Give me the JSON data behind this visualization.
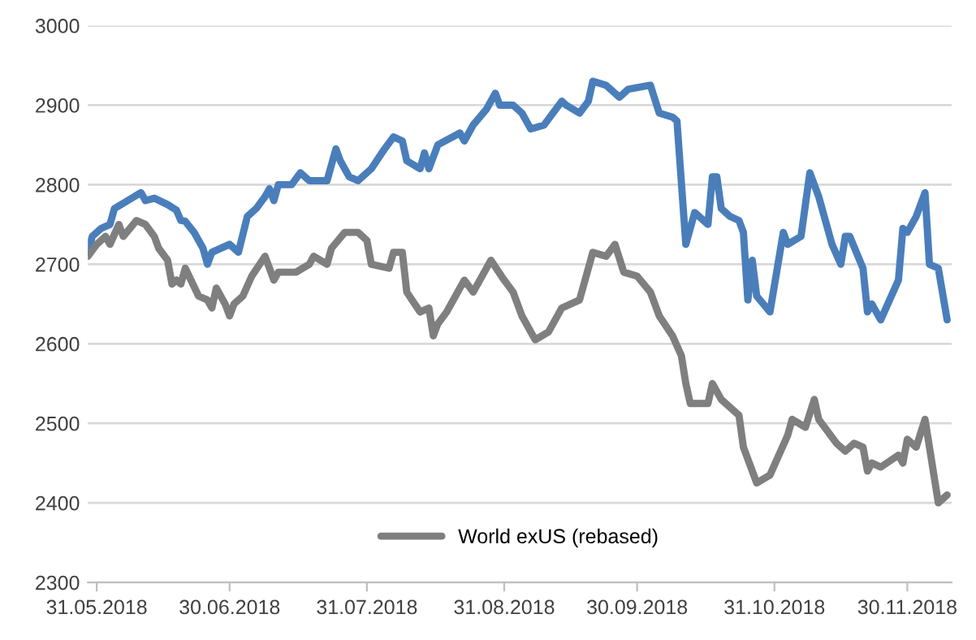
{
  "chart_data": {
    "type": "line",
    "series": [
      {
        "color": "#4a7ebb",
        "x": [
          "2018-05-29",
          "2018-05-30",
          "2018-06-01",
          "2018-06-03",
          "2018-06-04",
          "2018-06-07",
          "2018-06-10",
          "2018-06-11",
          "2018-06-13",
          "2018-06-16",
          "2018-06-18",
          "2018-06-19",
          "2018-06-20",
          "2018-06-22",
          "2018-06-24",
          "2018-06-25",
          "2018-06-26",
          "2018-06-30",
          "2018-07-02",
          "2018-07-04",
          "2018-07-06",
          "2018-07-08",
          "2018-07-09",
          "2018-07-10",
          "2018-07-11",
          "2018-07-14",
          "2018-07-16",
          "2018-07-18",
          "2018-07-22",
          "2018-07-24",
          "2018-07-25",
          "2018-07-27",
          "2018-07-29",
          "2018-08-01",
          "2018-08-04",
          "2018-08-06",
          "2018-08-08",
          "2018-08-09",
          "2018-08-12",
          "2018-08-13",
          "2018-08-14",
          "2018-08-16",
          "2018-08-21",
          "2018-08-22",
          "2018-08-24",
          "2018-08-27",
          "2018-08-29",
          "2018-08-30",
          "2018-09-02",
          "2018-09-04",
          "2018-09-06",
          "2018-09-09",
          "2018-09-13",
          "2018-09-14",
          "2018-09-17",
          "2018-09-19",
          "2018-09-20",
          "2018-09-23",
          "2018-09-26",
          "2018-09-28",
          "2018-10-03",
          "2018-10-05",
          "2018-10-08",
          "2018-10-09",
          "2018-10-11",
          "2018-10-13",
          "2018-10-16",
          "2018-10-17",
          "2018-10-18",
          "2018-10-19",
          "2018-10-21",
          "2018-10-23",
          "2018-10-24",
          "2018-10-25",
          "2018-10-26",
          "2018-10-27",
          "2018-10-30",
          "2018-11-02",
          "2018-11-03",
          "2018-11-06",
          "2018-11-08",
          "2018-11-10",
          "2018-11-13",
          "2018-11-15",
          "2018-11-16",
          "2018-11-17",
          "2018-11-20",
          "2018-11-21",
          "2018-11-22",
          "2018-11-24",
          "2018-11-28",
          "2018-11-29",
          "2018-11-30",
          "2018-12-02",
          "2018-12-04",
          "2018-12-05",
          "2018-12-07",
          "2018-12-09"
        ],
        "values": [
          2715,
          2735,
          2745,
          2750,
          2770,
          2780,
          2790,
          2780,
          2783,
          2775,
          2768,
          2755,
          2754,
          2740,
          2720,
          2700,
          2715,
          2725,
          2715,
          2760,
          2770,
          2785,
          2795,
          2780,
          2800,
          2800,
          2815,
          2805,
          2805,
          2845,
          2830,
          2810,
          2805,
          2820,
          2845,
          2860,
          2855,
          2830,
          2820,
          2840,
          2820,
          2850,
          2865,
          2855,
          2875,
          2895,
          2915,
          2900,
          2900,
          2890,
          2870,
          2875,
          2905,
          2900,
          2890,
          2905,
          2930,
          2925,
          2910,
          2920,
          2925,
          2890,
          2885,
          2880,
          2725,
          2765,
          2750,
          2810,
          2810,
          2770,
          2760,
          2755,
          2740,
          2655,
          2705,
          2660,
          2640,
          2740,
          2725,
          2735,
          2815,
          2785,
          2725,
          2700,
          2735,
          2735,
          2695,
          2640,
          2650,
          2630,
          2680,
          2745,
          2740,
          2760,
          2790,
          2700,
          2695,
          2630
        ]
      },
      {
        "name": "World exUS (rebased)",
        "color": "#7f7f7f",
        "x": [
          "2018-05-29",
          "2018-05-31",
          "2018-06-02",
          "2018-06-03",
          "2018-06-05",
          "2018-06-06",
          "2018-06-09",
          "2018-06-11",
          "2018-06-13",
          "2018-06-14",
          "2018-06-16",
          "2018-06-17",
          "2018-06-18",
          "2018-06-19",
          "2018-06-20",
          "2018-06-23",
          "2018-06-25",
          "2018-06-26",
          "2018-06-27",
          "2018-06-29",
          "2018-06-30",
          "2018-07-01",
          "2018-07-03",
          "2018-07-05",
          "2018-07-08",
          "2018-07-10",
          "2018-07-11",
          "2018-07-15",
          "2018-07-18",
          "2018-07-19",
          "2018-07-22",
          "2018-07-23",
          "2018-07-26",
          "2018-07-29",
          "2018-07-31",
          "2018-08-01",
          "2018-08-05",
          "2018-08-06",
          "2018-08-08",
          "2018-08-09",
          "2018-08-12",
          "2018-08-14",
          "2018-08-15",
          "2018-08-16",
          "2018-08-18",
          "2018-08-20",
          "2018-08-22",
          "2018-08-24",
          "2018-08-28",
          "2018-08-31",
          "2018-09-02",
          "2018-09-04",
          "2018-09-07",
          "2018-09-10",
          "2018-09-13",
          "2018-09-17",
          "2018-09-20",
          "2018-09-23",
          "2018-09-25",
          "2018-09-27",
          "2018-09-30",
          "2018-10-03",
          "2018-10-05",
          "2018-10-08",
          "2018-10-10",
          "2018-10-11",
          "2018-10-12",
          "2018-10-16",
          "2018-10-17",
          "2018-10-19",
          "2018-10-23",
          "2018-10-24",
          "2018-10-27",
          "2018-10-30",
          "2018-11-03",
          "2018-11-04",
          "2018-11-07",
          "2018-11-09",
          "2018-11-10",
          "2018-11-14",
          "2018-11-16",
          "2018-11-18",
          "2018-11-20",
          "2018-11-21",
          "2018-11-22",
          "2018-11-24",
          "2018-11-28",
          "2018-11-29",
          "2018-11-30",
          "2018-12-02",
          "2018-12-04",
          "2018-12-07",
          "2018-12-09"
        ],
        "values": [
          2710,
          2725,
          2735,
          2725,
          2750,
          2735,
          2755,
          2750,
          2735,
          2720,
          2705,
          2675,
          2680,
          2675,
          2695,
          2660,
          2655,
          2645,
          2670,
          2650,
          2635,
          2650,
          2660,
          2685,
          2710,
          2680,
          2690,
          2690,
          2700,
          2710,
          2700,
          2720,
          2740,
          2740,
          2730,
          2700,
          2695,
          2715,
          2715,
          2665,
          2640,
          2645,
          2610,
          2625,
          2640,
          2660,
          2680,
          2665,
          2705,
          2680,
          2665,
          2635,
          2605,
          2615,
          2645,
          2655,
          2715,
          2710,
          2725,
          2690,
          2685,
          2665,
          2635,
          2610,
          2585,
          2550,
          2525,
          2525,
          2550,
          2530,
          2510,
          2470,
          2425,
          2435,
          2485,
          2505,
          2495,
          2530,
          2505,
          2475,
          2465,
          2475,
          2470,
          2440,
          2450,
          2445,
          2460,
          2450,
          2480,
          2470,
          2505,
          2400,
          2410
        ]
      }
    ],
    "xlim": [
      "2018-05-29",
      "2018-12-10"
    ],
    "xticks": [
      {
        "value": "2018-05-31",
        "label": "31.05.2018"
      },
      {
        "value": "2018-06-30",
        "label": "30.06.2018"
      },
      {
        "value": "2018-07-31",
        "label": "31.07.2018"
      },
      {
        "value": "2018-08-31",
        "label": "31.08.2018"
      },
      {
        "value": "2018-09-30",
        "label": "30.09.2018"
      },
      {
        "value": "2018-10-31",
        "label": "31.10.2018"
      },
      {
        "value": "2018-11-30",
        "label": "30.11.2018"
      }
    ],
    "ylim": [
      2300,
      3000
    ],
    "yticks": [
      2300,
      2400,
      2500,
      2600,
      2700,
      2800,
      2900,
      3000
    ],
    "grid": "y",
    "legend": "bottom",
    "marker": "none",
    "line_style": "solid"
  }
}
